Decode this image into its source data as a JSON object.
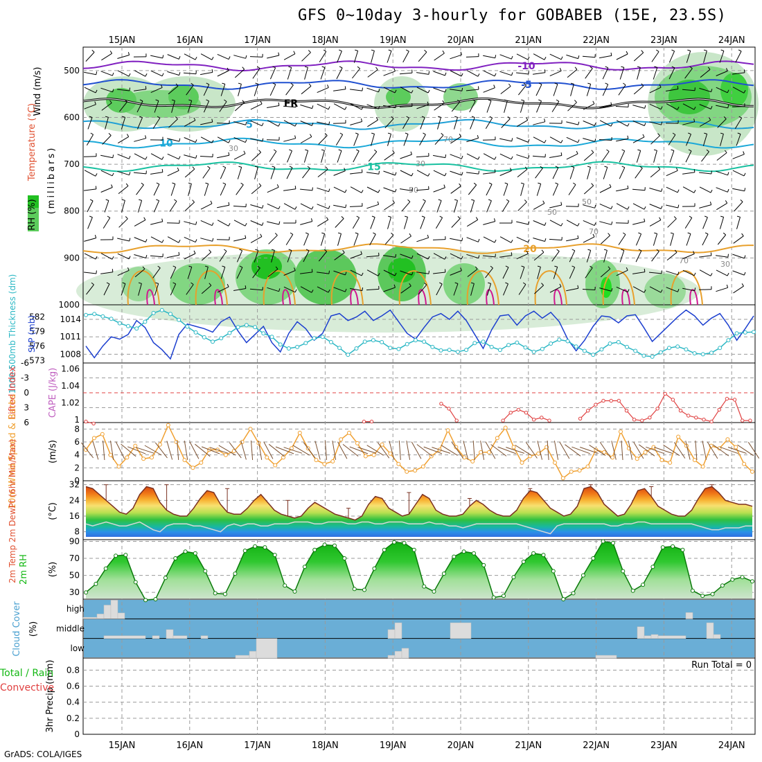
{
  "title": "GFS 0~10day 3-hourly for GOBABEB (15E, 23.5S)",
  "credit": "GrADS: COLA/IGES",
  "colors": {
    "grid": "#9a9a9a",
    "temp_warm": "#e8a02c",
    "temp_cool": "#1e9fd6",
    "temp_mid": "#18c0a0",
    "freeze": "#000000",
    "rh_fill": "#7fd67f",
    "slp": "#1c3fcf",
    "thickness": "#2ab7c4",
    "lifted": "#e04040",
    "wind10": "#f0a030",
    "cloud_bg": "#6aaed6",
    "cloud_bar": "#dcdcdc",
    "rh2m": "#14b814"
  },
  "chart_data": [
    {
      "type": "heatmap",
      "panel": "upper-air",
      "labels": {
        "wind": "Wind (m/s)",
        "temp": "Temperature (°C)",
        "rh": "RH (%)",
        "unit": "(millibars)"
      },
      "x_ticks": [
        "15JAN",
        "16JAN",
        "17JAN",
        "18JAN",
        "19JAN",
        "20JAN",
        "21JAN",
        "22JAN",
        "23JAN",
        "24JAN"
      ],
      "y_ticks": [
        500,
        600,
        700,
        800,
        900,
        1000
      ],
      "ylim": [
        450,
        1000
      ],
      "temperature_contours": [
        {
          "label": "-10",
          "level_mb": 490
        },
        {
          "label": "-5",
          "level_mb": 530
        },
        {
          "label": "FR",
          "level_mb": 570
        },
        {
          "label": "5",
          "level_mb": 615
        },
        {
          "label": "10",
          "level_mb": 655
        },
        {
          "label": "15",
          "level_mb": 705
        },
        {
          "label": "20",
          "level_mb": 880
        }
      ],
      "rh_labels": [
        "30",
        "50",
        "70"
      ]
    },
    {
      "type": "line",
      "panel": "slp-thickness",
      "labels": {
        "left": "1000-500mb Thickness (dm)",
        "right": "SLP (mb)"
      },
      "y_ticks_left": [
        573,
        576,
        579,
        582
      ],
      "y_ticks_right": [
        1008,
        1011,
        1014
      ],
      "series": [
        {
          "name": "SLP",
          "ylim": [
            1006.5,
            1016.5
          ],
          "values": [
            1009.4,
            1007.4,
            1009.4,
            1011.0,
            1010.6,
            1011.4,
            1013.8,
            1012.6,
            1010.0,
            1008.8,
            1007.2,
            1011.4,
            1013.2,
            1012.8,
            1012.4,
            1011.8,
            1013.6,
            1014.4,
            1012.0,
            1010.0,
            1011.4,
            1012.8,
            1010.0,
            1008.4,
            1011.6,
            1013.6,
            1012.4,
            1010.4,
            1011.6,
            1014.6,
            1015.0,
            1013.8,
            1014.4,
            1015.4,
            1013.8,
            1014.6,
            1015.6,
            1013.6,
            1011.6,
            1010.6,
            1012.6,
            1014.4,
            1015.0,
            1014.0,
            1015.4,
            1013.8,
            1011.4,
            1009.0,
            1012.2,
            1014.6,
            1014.8,
            1013.0,
            1014.6,
            1015.4,
            1014.2,
            1015.2,
            1013.6,
            1010.6,
            1008.6,
            1010.4,
            1012.8,
            1014.6,
            1014.4,
            1013.4,
            1014.6,
            1014.8,
            1012.6,
            1010.2,
            1011.6,
            1013.0,
            1014.4,
            1015.6,
            1014.6,
            1013.0,
            1014.2,
            1015.0,
            1013.0,
            1010.4,
            1012.4,
            1014.6
          ]
        },
        {
          "name": "Thickness",
          "ylim": [
            572.5,
            584.5
          ],
          "values": [
            582.4,
            582.6,
            582.1,
            581.6,
            580.7,
            580.1,
            579.6,
            581.0,
            582.8,
            583.4,
            582.6,
            581.4,
            580.0,
            578.8,
            577.8,
            576.9,
            577.6,
            578.7,
            579.9,
            580.3,
            579.9,
            578.6,
            577.9,
            576.3,
            575.5,
            575.8,
            576.6,
            577.6,
            577.9,
            576.8,
            575.6,
            574.2,
            575.5,
            576.9,
            577.2,
            576.8,
            575.6,
            575.4,
            576.4,
            577.2,
            576.9,
            575.8,
            575.1,
            575.2,
            574.8,
            575.2,
            576.6,
            576.9,
            575.8,
            575.2,
            576.2,
            576.7,
            575.7,
            574.8,
            575.4,
            576.5,
            577.3,
            577.0,
            575.9,
            575.0,
            574.2,
            575.3,
            576.5,
            576.8,
            575.8,
            575.0,
            574.0,
            573.8,
            574.7,
            575.6,
            575.9,
            575.3,
            574.5,
            574.3,
            574.6,
            575.6,
            577.2,
            578.6,
            578.8,
            578.9
          ]
        }
      ]
    },
    {
      "type": "line",
      "panel": "lifted-cape",
      "labels": {
        "left": "Lifted Index",
        "right": "CAPE (J/kg)"
      },
      "y_ticks_left": [
        "-6",
        "-3",
        "0",
        "3",
        "6"
      ],
      "y_ticks_right": [
        "1",
        "1.02",
        "1.04",
        "1.06"
      ],
      "ylim": [
        6,
        -6
      ],
      "series": [
        {
          "name": "Lifted Index",
          "segments": [
            {
              "start": 0,
              "values": [
                5.8,
                6.2
              ]
            },
            {
              "start": 36,
              "values": [
                5.8,
                5.8
              ]
            },
            {
              "start": 46,
              "values": [
                2.2,
                3.2,
                5.6
              ]
            },
            {
              "start": 54,
              "values": [
                5.6,
                4.0,
                3.4,
                4.0,
                5.4,
                5.0,
                5.6
              ]
            },
            {
              "start": 64,
              "values": [
                5.2,
                3.6,
                2.4,
                1.6,
                1.6,
                1.6,
                3.6,
                5.4,
                5.6,
                5.0,
                3.2,
                0.2,
                1.4,
                3.6,
                4.6,
                5.0,
                5.4,
                5.8,
                3.4,
                1.2,
                1.4,
                5.6,
                5.6
              ]
            }
          ]
        }
      ]
    },
    {
      "type": "line",
      "panel": "10m-wind",
      "labels": {
        "left": "10m Wind Speed & Barbs",
        "unit": "(m/s)"
      },
      "y_ticks": [
        0,
        2,
        4,
        6,
        8
      ],
      "ylim": [
        0,
        9
      ],
      "series": [
        {
          "name": "10m Wind Speed",
          "values": [
            4.8,
            6.6,
            7.2,
            4.0,
            2.2,
            3.6,
            5.4,
            3.4,
            3.6,
            5.6,
            8.6,
            6.0,
            3.2,
            2.0,
            2.8,
            4.8,
            4.8,
            4.0,
            4.6,
            6.0,
            8.0,
            5.8,
            3.6,
            2.4,
            3.6,
            5.0,
            7.4,
            5.0,
            3.2,
            2.6,
            3.0,
            6.4,
            7.4,
            5.8,
            3.8,
            4.0,
            5.6,
            4.2,
            2.6,
            1.4,
            1.6,
            2.2,
            3.8,
            4.8,
            7.8,
            5.2,
            3.6,
            3.0,
            4.4,
            4.4,
            6.6,
            8.2,
            5.2,
            2.8,
            3.8,
            4.2,
            5.2,
            2.8,
            0.4,
            1.4,
            1.6,
            2.2,
            4.8,
            4.4,
            3.6,
            7.6,
            5.0,
            3.4,
            4.4,
            5.2,
            3.2,
            2.8,
            6.8,
            5.4,
            3.2,
            2.2,
            5.4,
            5.0,
            6.4,
            5.2,
            2.6,
            1.4
          ]
        }
      ]
    },
    {
      "type": "area",
      "panel": "2m-temp",
      "labels": {
        "left": "2m Temp 2m DewPt (6hr Min/Max)",
        "unit": "(°C)"
      },
      "y_ticks": [
        8,
        16,
        24,
        32
      ],
      "ylim": [
        4,
        34
      ],
      "series": [
        {
          "name": "2m Temp",
          "values": [
            31,
            30,
            27,
            24,
            21,
            18,
            17,
            20,
            27,
            31,
            30,
            23,
            19,
            17,
            16,
            16,
            20,
            25,
            29,
            28,
            22,
            18,
            17,
            17,
            20,
            24,
            27,
            23,
            19,
            17,
            16,
            15,
            16,
            20,
            23,
            21,
            19,
            17,
            16,
            15,
            14,
            16,
            22,
            26,
            25,
            20,
            18,
            16,
            17,
            22,
            27,
            25,
            19,
            17,
            16,
            16,
            17,
            21,
            24,
            22,
            19,
            17,
            16,
            16,
            19,
            25,
            29,
            28,
            24,
            20,
            18,
            16,
            17,
            21,
            30,
            31,
            28,
            22,
            19,
            16,
            17,
            22,
            29,
            30,
            26,
            21,
            19,
            17,
            16,
            16,
            19,
            25,
            30,
            31,
            28,
            24,
            23,
            22,
            22,
            21
          ]
        },
        {
          "name": "2m DewPt",
          "values": [
            12,
            11,
            12,
            13,
            12,
            11,
            11,
            12,
            13,
            11,
            9,
            8,
            11,
            12,
            12,
            12,
            11,
            11,
            10,
            9,
            8,
            11,
            12,
            11,
            12,
            12,
            11,
            11,
            12,
            12,
            12,
            13,
            13,
            13,
            12,
            12,
            13,
            13,
            13,
            12,
            12,
            13,
            13,
            12,
            12,
            13,
            13,
            13,
            12,
            12,
            12,
            13,
            12,
            12,
            11,
            11,
            10,
            11,
            12,
            12,
            12,
            12,
            12,
            12,
            12,
            11,
            10,
            9,
            8,
            7,
            11,
            12,
            12,
            12,
            12,
            12,
            12,
            12,
            11,
            11,
            12,
            12,
            13,
            13,
            12,
            12,
            12,
            12,
            12,
            12,
            12,
            11,
            10,
            9,
            9,
            10,
            10,
            10,
            11,
            11
          ]
        }
      ]
    },
    {
      "type": "area",
      "panel": "2m-rh",
      "labels": {
        "left": "2m RH",
        "unit": "(%)"
      },
      "y_ticks": [
        30,
        50,
        70,
        90
      ],
      "ylim": [
        22,
        92
      ],
      "series": [
        {
          "name": "2m RH",
          "values": [
            30,
            40,
            58,
            73,
            74,
            42,
            21,
            22,
            47,
            70,
            78,
            76,
            55,
            29,
            28,
            52,
            79,
            84,
            83,
            74,
            38,
            31,
            60,
            80,
            86,
            85,
            70,
            34,
            33,
            58,
            80,
            89,
            88,
            80,
            37,
            31,
            52,
            72,
            78,
            76,
            62,
            24,
            26,
            48,
            66,
            76,
            74,
            55,
            22,
            29,
            50,
            70,
            90,
            88,
            55,
            32,
            39,
            60,
            83,
            84,
            80,
            32,
            26,
            28,
            38,
            45,
            48,
            43
          ]
        }
      ]
    },
    {
      "type": "bar",
      "panel": "cloud-cover",
      "labels": {
        "left": "Cloud Cover",
        "unit": "(%)"
      },
      "layers": [
        "high",
        "middle",
        "low"
      ],
      "series": [
        {
          "name": "high",
          "bars": [
            [
              0,
              2,
              0.0,
              0.08
            ],
            [
              2,
              3,
              0.25
            ],
            [
              3,
              4,
              0.7
            ],
            [
              4,
              5,
              0.95
            ],
            [
              5,
              6,
              0.3
            ],
            [
              87,
              88,
              0.32
            ]
          ]
        },
        {
          "name": "middle",
          "bars": [
            [
              3,
              9,
              0.14
            ],
            [
              10,
              11,
              0.14
            ],
            [
              12,
              13,
              0.45
            ],
            [
              13,
              15,
              0.14
            ],
            [
              17,
              18,
              0.14
            ],
            [
              44,
              45,
              0.45
            ],
            [
              45,
              46,
              0.8
            ],
            [
              53,
              56,
              0.8
            ],
            [
              80,
              81,
              0.6
            ],
            [
              81,
              82,
              0.14
            ],
            [
              82,
              83,
              0.2
            ],
            [
              83,
              87,
              0.14
            ],
            [
              90,
              91,
              0.8
            ],
            [
              91,
              92,
              0.2
            ]
          ]
        },
        {
          "name": "low",
          "bars": [
            [
              22,
              24,
              0.14
            ],
            [
              24,
              25,
              0.35
            ],
            [
              25,
              28,
              1.0
            ],
            [
              44,
              45,
              0.14
            ],
            [
              45,
              46,
              0.35
            ],
            [
              46,
              47,
              0.5
            ],
            [
              74,
              77,
              0.14
            ]
          ]
        }
      ]
    },
    {
      "type": "bar",
      "panel": "precip",
      "labels": {
        "left": "3hr Precip (mm)",
        "legend_total": "Total / Rain",
        "legend_conv": "Convective",
        "run_total": "Run Total = 0"
      },
      "y_ticks": [
        "0",
        "0.2",
        "0.4",
        "0.6",
        "0.8"
      ],
      "ylim": [
        0,
        0.95
      ],
      "series": [
        {
          "name": "precip",
          "values": []
        }
      ]
    }
  ]
}
